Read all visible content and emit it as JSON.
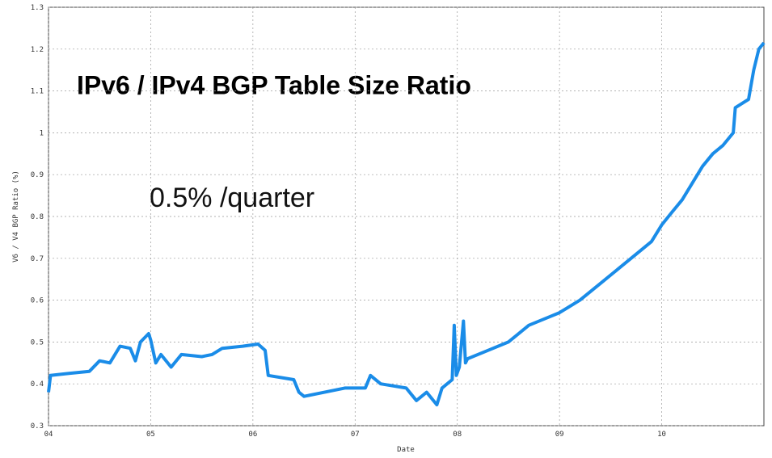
{
  "chart_data": {
    "type": "line",
    "title": "IPv6 / IPv4 BGP Table Size Ratio",
    "annotation": "0.5% /quarter",
    "x_label": "Date",
    "y_label": "V6 / V4 BGP Ratio (%)",
    "xlim": [
      4,
      11
    ],
    "xticks": [
      {
        "value": 4,
        "label": "04"
      },
      {
        "value": 5,
        "label": "05"
      },
      {
        "value": 6,
        "label": "06"
      },
      {
        "value": 7,
        "label": "07"
      },
      {
        "value": 8,
        "label": "08"
      },
      {
        "value": 9,
        "label": "09"
      },
      {
        "value": 10,
        "label": "10"
      }
    ],
    "ylim": [
      0.3,
      1.3
    ],
    "yticks": [
      0.3,
      0.4,
      0.5,
      0.6,
      0.7,
      0.8,
      0.9,
      1,
      1.1,
      1.2,
      1.3
    ],
    "grid": true,
    "series": [
      {
        "color": "#1a8ce8",
        "x": [
          4.0,
          4.02,
          4.2,
          4.4,
          4.5,
          4.6,
          4.7,
          4.8,
          4.85,
          4.9,
          4.98,
          5.0,
          5.05,
          5.1,
          5.2,
          5.3,
          5.5,
          5.6,
          5.7,
          5.9,
          6.05,
          6.12,
          6.15,
          6.4,
          6.45,
          6.5,
          6.7,
          6.9,
          7.1,
          7.15,
          7.25,
          7.5,
          7.6,
          7.7,
          7.8,
          7.85,
          7.95,
          7.97,
          7.99,
          8.02,
          8.06,
          8.08,
          8.1,
          8.3,
          8.5,
          8.7,
          8.9,
          9.0,
          9.2,
          9.4,
          9.6,
          9.8,
          9.9,
          10.0,
          10.1,
          10.2,
          10.3,
          10.4,
          10.5,
          10.6,
          10.7,
          10.72,
          10.85,
          10.9,
          10.95,
          11.0
        ],
        "values": [
          0.38,
          0.42,
          0.425,
          0.43,
          0.455,
          0.45,
          0.49,
          0.485,
          0.455,
          0.5,
          0.52,
          0.505,
          0.45,
          0.47,
          0.44,
          0.47,
          0.465,
          0.47,
          0.485,
          0.49,
          0.495,
          0.48,
          0.42,
          0.41,
          0.38,
          0.37,
          0.38,
          0.39,
          0.39,
          0.42,
          0.4,
          0.39,
          0.36,
          0.38,
          0.35,
          0.39,
          0.41,
          0.54,
          0.42,
          0.44,
          0.55,
          0.45,
          0.46,
          0.48,
          0.5,
          0.54,
          0.56,
          0.57,
          0.6,
          0.64,
          0.68,
          0.72,
          0.74,
          0.78,
          0.81,
          0.84,
          0.88,
          0.92,
          0.95,
          0.97,
          1.0,
          1.06,
          1.08,
          1.15,
          1.2,
          1.215
        ]
      }
    ]
  }
}
